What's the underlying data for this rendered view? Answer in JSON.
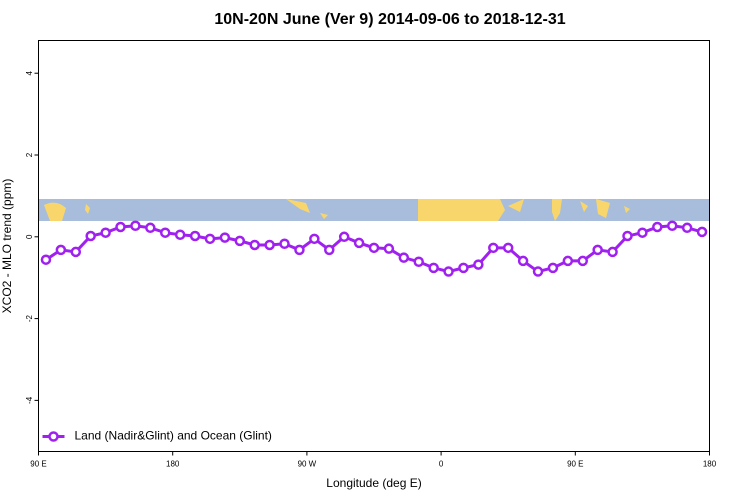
{
  "chart_data": {
    "type": "line",
    "title": "10N-20N June (Ver 9)   2014-09-06 to 2018-12-31",
    "x_label": "Longitude (deg E)",
    "y_label": "XCO2 - MLO trend (ppm)",
    "xlim": [
      90,
      540
    ],
    "ylim": [
      -5.25,
      4.8
    ],
    "xticks": [
      {
        "value": 90,
        "label": "90 E"
      },
      180,
      {
        "value": 270,
        "label": "90 W"
      },
      {
        "value": 360,
        "label": "0"
      },
      {
        "value": 450,
        "label": "90 E"
      },
      {
        "value": 540,
        "label": "180"
      }
    ],
    "yticks": [
      -4,
      -2,
      0,
      2,
      4
    ],
    "legend": "bottom-left",
    "x": [
      95,
      105,
      115,
      125,
      135,
      145,
      155,
      165,
      175,
      185,
      195,
      205,
      215,
      225,
      235,
      245,
      255,
      265,
      275,
      285,
      295,
      305,
      315,
      325,
      335,
      345,
      355,
      365,
      375,
      385,
      395,
      405,
      415,
      425,
      435,
      445,
      455,
      465,
      475,
      485,
      495,
      505,
      515,
      525,
      535
    ],
    "series": [
      {
        "name": "Land (Nadir&Glint) and Ocean (Glint)",
        "color": "#a020f0",
        "values": [
          -0.56,
          -0.32,
          -0.37,
          0.02,
          0.1,
          0.24,
          0.27,
          0.22,
          0.1,
          0.05,
          0.02,
          -0.05,
          -0.02,
          -0.1,
          -0.2,
          -0.2,
          -0.17,
          -0.32,
          -0.05,
          -0.32,
          0,
          -0.15,
          -0.27,
          -0.29,
          -0.51,
          -0.61,
          -0.76,
          -0.85,
          -0.76,
          -0.68,
          -0.27,
          -0.27,
          -0.59,
          -0.85,
          -0.76,
          -0.59,
          -0.59,
          -0.32,
          -0.37,
          0.02,
          0.1,
          0.24,
          0.27,
          0.22,
          0.12
        ]
      }
    ]
  }
}
